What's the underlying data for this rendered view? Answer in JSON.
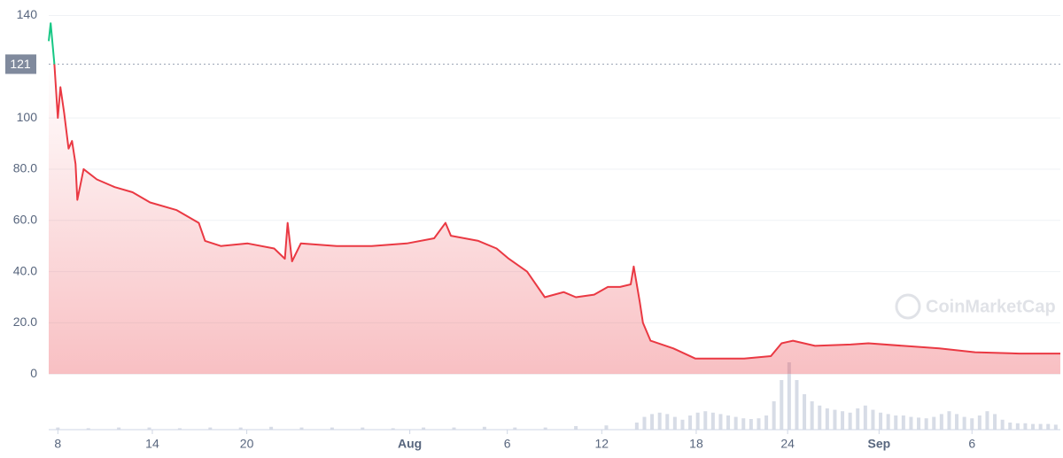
{
  "chart_data": {
    "type": "line",
    "watermark": "CoinMarketCap",
    "reference_value": {
      "value": 121,
      "label": "121"
    },
    "up_color": "#16c784",
    "down_color": "#ea3943",
    "grid": true,
    "xlim": [
      7.4,
      73.8
    ],
    "xticks": [
      {
        "value": 8,
        "label": "8"
      },
      {
        "value": 14.2,
        "label": "14"
      },
      {
        "value": 20.4,
        "label": "20"
      },
      {
        "value": 31.1,
        "label": "Aug"
      },
      {
        "value": 37.5,
        "label": "6"
      },
      {
        "value": 43.7,
        "label": "12"
      },
      {
        "value": 49.9,
        "label": "18"
      },
      {
        "value": 55.9,
        "label": "24"
      },
      {
        "value": 61.9,
        "label": "Sep"
      },
      {
        "value": 68,
        "label": "6"
      }
    ],
    "ylim": [
      -20,
      140
    ],
    "yticks": [
      0,
      {
        "value": 20,
        "label": "20.0"
      },
      {
        "value": 40,
        "label": "40.0"
      },
      {
        "value": 60,
        "label": "60.0"
      },
      {
        "value": 80,
        "label": "80.0"
      },
      100,
      140
    ],
    "series": [
      {
        "color": "#ea3943",
        "x": [
          7.4,
          7.53,
          7.77,
          8.0,
          8.17,
          8.41,
          8.7,
          8.93,
          9.16,
          9.28,
          9.69,
          10.56,
          11.73,
          12.9,
          14.05,
          15.8,
          17.25,
          17.66,
          18.7,
          20.46,
          22.2,
          22.9,
          23.08,
          23.37,
          23.95,
          26.3,
          28.6,
          30.9,
          32.7,
          33.44,
          33.8,
          35.6,
          36.8,
          37.6,
          38.8,
          39.96,
          41.2,
          42,
          43.2,
          44.1,
          44.9,
          45.6,
          45.8,
          46.2,
          46.4,
          46.9,
          48.4,
          49.85,
          50.7,
          53.05,
          54.8,
          55.5,
          56.25,
          57.7,
          60.04,
          61.2,
          63.5,
          65.86,
          68.2,
          71.1,
          73.8
        ],
        "values": [
          130,
          137,
          121,
          100,
          112,
          102,
          88,
          91,
          82,
          68,
          80,
          76,
          73,
          71,
          67,
          64,
          59,
          52,
          50,
          51,
          49,
          45,
          59,
          44,
          51,
          50,
          50,
          51,
          53,
          59,
          54,
          52,
          49,
          45,
          40,
          30,
          32,
          30,
          31,
          34,
          34,
          35,
          42,
          28,
          20,
          13,
          10,
          6,
          6,
          6,
          7,
          12,
          13,
          11,
          11.5,
          12,
          11,
          10,
          8.5,
          8,
          8
        ]
      }
    ],
    "volume": {
      "color": "#cdd3e0",
      "y2lim": [
        0,
        100
      ],
      "x": [
        8,
        10,
        12,
        14,
        16,
        18,
        20,
        22,
        24,
        26,
        28,
        30,
        32,
        34,
        36,
        38,
        40,
        42,
        44,
        46,
        46.5,
        47,
        47.5,
        48,
        48.5,
        49,
        49.5,
        50,
        50.5,
        51,
        51.5,
        52,
        52.5,
        53,
        53.5,
        54,
        54.5,
        55,
        55.5,
        56,
        56.5,
        57,
        57.5,
        58,
        58.5,
        59,
        59.5,
        60,
        60.5,
        61,
        61.5,
        62,
        62.5,
        63,
        63.5,
        64,
        64.5,
        65,
        65.5,
        66,
        66.5,
        67,
        67.5,
        68,
        68.5,
        69,
        69.5,
        70,
        70.5,
        71,
        71.5,
        72,
        72.5,
        73,
        73.5
      ],
      "values": [
        3,
        2,
        3,
        3,
        2,
        3,
        3,
        4,
        3,
        3,
        3,
        2,
        3,
        3,
        4,
        3,
        3,
        5,
        6,
        10,
        18,
        22,
        24,
        22,
        18,
        14,
        20,
        24,
        26,
        24,
        22,
        20,
        18,
        16,
        15,
        16,
        20,
        40,
        70,
        95,
        70,
        50,
        40,
        34,
        30,
        28,
        26,
        24,
        30,
        34,
        28,
        24,
        22,
        20,
        20,
        18,
        17,
        16,
        18,
        22,
        26,
        22,
        18,
        16,
        20,
        26,
        22,
        14,
        10,
        9,
        9,
        8,
        8,
        8,
        7
      ]
    }
  }
}
